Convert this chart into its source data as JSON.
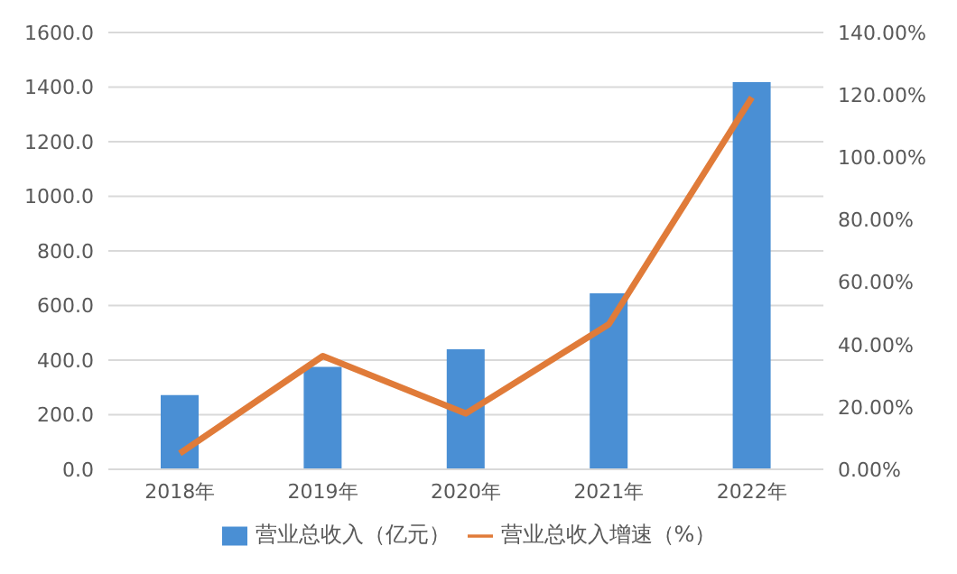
{
  "chart_data": {
    "type": "bar",
    "categories": [
      "2018年",
      "2019年",
      "2020年",
      "2021年",
      "2022年"
    ],
    "series": [
      {
        "name": "营业总收入（亿元）",
        "color": "#4a8fd4",
        "values": [
          272,
          375,
          440,
          645,
          1418
        ]
      },
      {
        "name": "营业总收入增速（%）",
        "type": "line",
        "axis": "y2",
        "color": "#e07b39",
        "values": [
          5.1,
          36.3,
          17.9,
          46.5,
          119.2
        ]
      }
    ],
    "ylim": [
      0,
      1600
    ],
    "yticks": [
      {
        "value": 0,
        "label": "0.0"
      },
      {
        "value": 200,
        "label": "200.0"
      },
      {
        "value": 400,
        "label": "400.0"
      },
      {
        "value": 600,
        "label": "600.0"
      },
      {
        "value": 800,
        "label": "800.0"
      },
      {
        "value": 1000,
        "label": "1000.0"
      },
      {
        "value": 1200,
        "label": "1200.0"
      },
      {
        "value": 1400,
        "label": "1400.0"
      },
      {
        "value": 1600,
        "label": "1600.0"
      }
    ],
    "y2lim": [
      0,
      140
    ],
    "y2ticks": [
      {
        "value": 0,
        "label": "0.00%"
      },
      {
        "value": 20,
        "label": "20.00%"
      },
      {
        "value": 40,
        "label": "40.00%"
      },
      {
        "value": 60,
        "label": "60.00%"
      },
      {
        "value": 80,
        "label": "80.00%"
      },
      {
        "value": 100,
        "label": "100.00%"
      },
      {
        "value": 120,
        "label": "120.00%"
      },
      {
        "value": 140,
        "label": "140.00%"
      }
    ],
    "grid": "y",
    "legend": "bottom",
    "marker": "none",
    "line_style": "solid"
  }
}
